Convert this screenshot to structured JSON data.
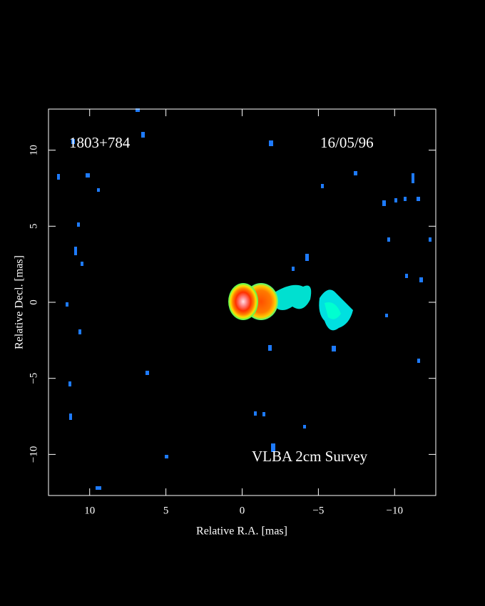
{
  "chart_data": {
    "type": "image",
    "annotations": [
      "1803+784",
      "16/05/96",
      "VLBA 2cm Survey"
    ],
    "xlabel": "Relative R.A. [mas]",
    "ylabel": "Relative Decl. [mas]",
    "xlim": [
      12.7,
      -12.7
    ],
    "ylim": [
      -12.7,
      12.7
    ],
    "xticks": [
      10,
      5,
      0,
      {
        "value": -5,
        "label": "−5"
      },
      {
        "value": -10,
        "label": "−10"
      }
    ],
    "yticks": [
      {
        "value": -10,
        "label": "−10"
      },
      {
        "value": -5,
        "label": "−5"
      },
      0,
      5,
      10
    ]
  }
}
